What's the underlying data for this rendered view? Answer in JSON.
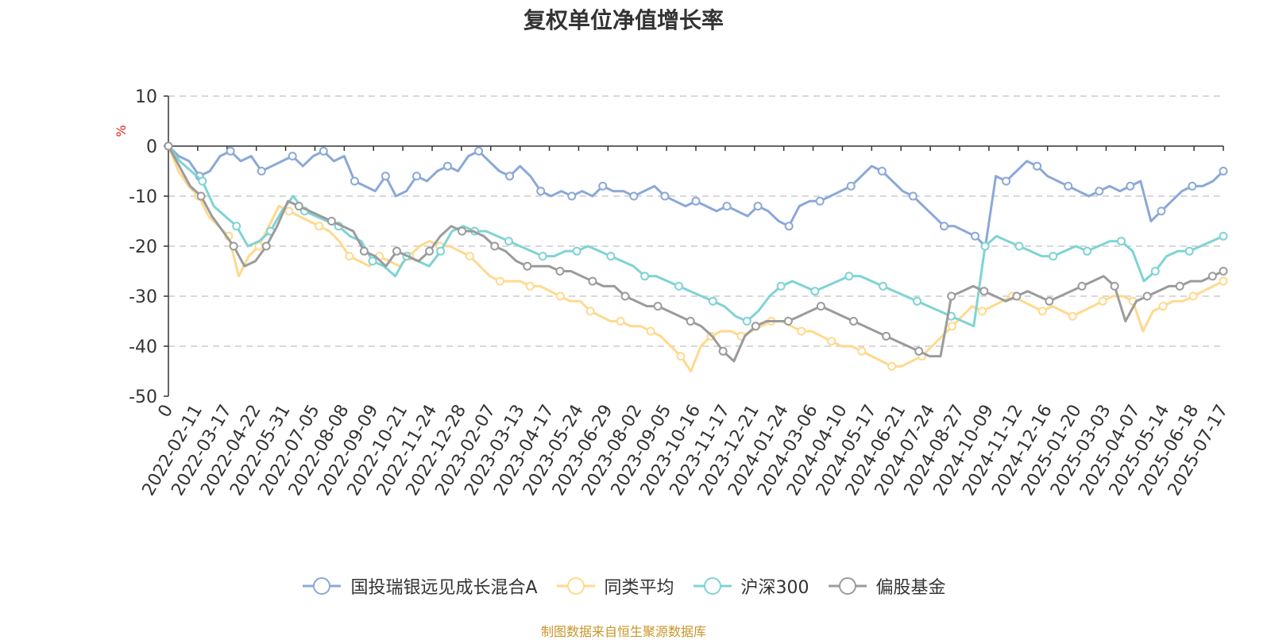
{
  "chart_data": {
    "type": "line",
    "title": "复权单位净值增长率",
    "ylabel": "%",
    "ylim": [
      -50,
      10
    ],
    "yticks": [
      10,
      0,
      -10,
      -20,
      -30,
      -40,
      -50
    ],
    "x_labels": [
      "0",
      "2022-02-11",
      "2022-03-17",
      "2022-04-22",
      "2022-05-31",
      "2022-07-05",
      "2022-08-08",
      "2022-09-09",
      "2022-10-21",
      "2022-11-24",
      "2022-12-28",
      "2023-02-07",
      "2023-03-13",
      "2023-04-17",
      "2023-05-24",
      "2023-06-29",
      "2023-08-02",
      "2023-09-05",
      "2023-10-16",
      "2023-11-17",
      "2023-12-21",
      "2024-01-24",
      "2024-03-06",
      "2024-04-10",
      "2024-05-17",
      "2024-06-21",
      "2024-07-24",
      "2024-08-27",
      "2024-10-09",
      "2024-11-12",
      "2024-12-16",
      "2025-01-20",
      "2025-03-03",
      "2025-04-07",
      "2025-05-14",
      "2025-06-18",
      "2025-07-17"
    ],
    "grid": "horizontal dashed",
    "legend_position": "bottom",
    "series": [
      {
        "name": "国投瑞银远见成长混合A",
        "color": "#8ba8d8",
        "values": [
          0,
          -2,
          -3,
          -6,
          -5,
          -2,
          -1,
          -3,
          -2,
          -5,
          -4,
          -3,
          -2,
          -4,
          -2,
          -1,
          -3,
          -2,
          -7,
          -8,
          -9,
          -6,
          -10,
          -9,
          -6,
          -7,
          -5,
          -4,
          -5,
          -2,
          -1,
          -3,
          -5,
          -6,
          -4,
          -6,
          -9,
          -10,
          -9,
          -10,
          -9,
          -10,
          -8,
          -9,
          -9,
          -10,
          -9,
          -8,
          -10,
          -11,
          -12,
          -11,
          -12,
          -13,
          -12,
          -13,
          -14,
          -12,
          -13,
          -15,
          -16,
          -12,
          -11,
          -11,
          -10,
          -9,
          -8,
          -6,
          -4,
          -5,
          -7,
          -9,
          -10,
          -12,
          -14,
          -16,
          -16,
          -17,
          -18,
          -20,
          -6,
          -7,
          -5,
          -3,
          -4,
          -6,
          -7,
          -8,
          -9,
          -10,
          -9,
          -8,
          -9,
          -8,
          -7,
          -15,
          -13,
          -11,
          -9,
          -8,
          -8,
          -7,
          -5
        ]
      },
      {
        "name": "同类平均",
        "color": "#ffd98e",
        "values": [
          0,
          -5,
          -8,
          -10,
          -14,
          -16,
          -18,
          -26,
          -22,
          -20,
          -16,
          -12,
          -13,
          -14,
          -15,
          -16,
          -17,
          -19,
          -22,
          -23,
          -24,
          -22,
          -23,
          -24,
          -22,
          -20,
          -19,
          -20,
          -20,
          -21,
          -22,
          -24,
          -26,
          -27,
          -27,
          -27,
          -28,
          -28,
          -29,
          -30,
          -31,
          -31,
          -33,
          -34,
          -35,
          -35,
          -36,
          -36,
          -37,
          -38,
          -40,
          -42,
          -45,
          -40,
          -38,
          -37,
          -37,
          -38,
          -37,
          -36,
          -35,
          -35,
          -36,
          -37,
          -37,
          -38,
          -39,
          -40,
          -40,
          -41,
          -42,
          -43,
          -44,
          -44,
          -43,
          -42,
          -40,
          -38,
          -36,
          -34,
          -32,
          -33,
          -32,
          -31,
          -30,
          -31,
          -32,
          -33,
          -32,
          -33,
          -34,
          -33,
          -32,
          -31,
          -30,
          -30,
          -31,
          -37,
          -33,
          -32,
          -31,
          -31,
          -30,
          -29,
          -28,
          -27
        ]
      },
      {
        "name": "沪深300",
        "color": "#7fd3d4",
        "values": [
          0,
          -3,
          -5,
          -7,
          -12,
          -14,
          -16,
          -20,
          -19,
          -17,
          -13,
          -10,
          -13,
          -14,
          -15,
          -16,
          -18,
          -19,
          -23,
          -24,
          -26,
          -22,
          -23,
          -24,
          -21,
          -17,
          -16,
          -17,
          -17,
          -18,
          -19,
          -20,
          -21,
          -22,
          -22,
          -21,
          -21,
          -20,
          -21,
          -22,
          -23,
          -24,
          -26,
          -26,
          -27,
          -28,
          -29,
          -30,
          -31,
          -32,
          -34,
          -35,
          -33,
          -30,
          -28,
          -27,
          -28,
          -29,
          -28,
          -27,
          -26,
          -26,
          -27,
          -28,
          -29,
          -30,
          -31,
          -32,
          -33,
          -34,
          -35,
          -36,
          -20,
          -18,
          -19,
          -20,
          -21,
          -22,
          -22,
          -21,
          -20,
          -21,
          -20,
          -19,
          -19,
          -21,
          -27,
          -25,
          -22,
          -21,
          -21,
          -20,
          -19,
          -18
        ]
      },
      {
        "name": "偏股基金",
        "color": "#9b9b9b",
        "values": [
          0,
          -4,
          -8,
          -10,
          -14,
          -17,
          -20,
          -24,
          -23,
          -20,
          -16,
          -11,
          -12,
          -13,
          -14,
          -15,
          -16,
          -17,
          -21,
          -22,
          -24,
          -21,
          -22,
          -23,
          -21,
          -18,
          -16,
          -17,
          -17,
          -18,
          -20,
          -21,
          -23,
          -24,
          -24,
          -24,
          -25,
          -25,
          -26,
          -27,
          -28,
          -28,
          -30,
          -31,
          -32,
          -32,
          -33,
          -34,
          -35,
          -36,
          -38,
          -41,
          -43,
          -38,
          -36,
          -35,
          -35,
          -35,
          -34,
          -33,
          -32,
          -33,
          -34,
          -35,
          -36,
          -37,
          -38,
          -39,
          -40,
          -41,
          -42,
          -42,
          -30,
          -29,
          -28,
          -29,
          -30,
          -31,
          -30,
          -29,
          -30,
          -31,
          -30,
          -29,
          -28,
          -27,
          -26,
          -28,
          -35,
          -31,
          -30,
          -29,
          -28,
          -28,
          -27,
          -27,
          -26,
          -25
        ]
      }
    ]
  },
  "source_note": "制图数据来自恒生聚源数据库"
}
